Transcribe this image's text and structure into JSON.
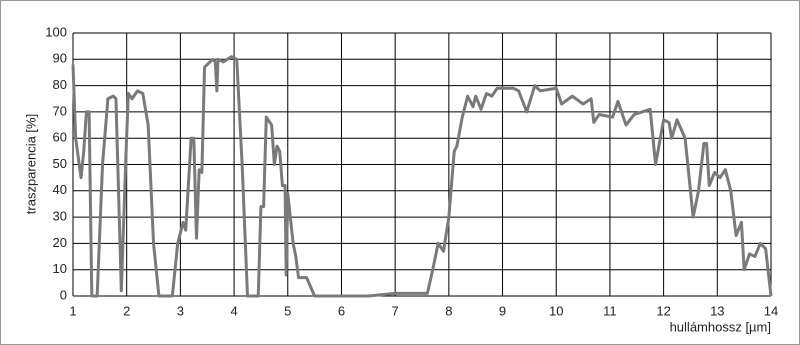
{
  "chart_data": {
    "type": "line",
    "y_label": "traszparencia [%]",
    "x_label": "hullámhossz [µm]",
    "color": "#7a7a7a",
    "grid": true,
    "xlim": [
      1,
      14
    ],
    "xticks": [
      1,
      2,
      3,
      4,
      5,
      6,
      7,
      8,
      9,
      10,
      11,
      12,
      13,
      14
    ],
    "ylim": [
      0,
      100
    ],
    "yticks": [
      0,
      10,
      20,
      30,
      40,
      50,
      60,
      70,
      80,
      90,
      100
    ],
    "x": [
      1.0,
      1.05,
      1.15,
      1.2,
      1.25,
      1.3,
      1.35,
      1.45,
      1.55,
      1.65,
      1.75,
      1.8,
      1.9,
      1.98,
      2.03,
      2.1,
      2.2,
      2.3,
      2.4,
      2.5,
      2.6,
      2.85,
      2.95,
      3.05,
      3.1,
      3.2,
      3.25,
      3.3,
      3.35,
      3.4,
      3.45,
      3.5,
      3.6,
      3.65,
      3.68,
      3.7,
      3.8,
      3.95,
      4.05,
      4.15,
      4.25,
      4.45,
      4.5,
      4.55,
      4.6,
      4.7,
      4.75,
      4.8,
      4.85,
      4.9,
      4.95,
      4.97,
      5.0,
      5.1,
      5.15,
      5.2,
      5.35,
      5.5,
      6.5,
      7.0,
      7.6,
      7.7,
      7.8,
      7.9,
      8.0,
      8.1,
      8.15,
      8.25,
      8.35,
      8.45,
      8.5,
      8.6,
      8.7,
      8.8,
      8.9,
      9.2,
      9.3,
      9.45,
      9.6,
      9.7,
      10.0,
      10.1,
      10.3,
      10.5,
      10.65,
      10.7,
      10.8,
      11.05,
      11.15,
      11.3,
      11.45,
      11.6,
      11.75,
      11.85,
      12.0,
      12.1,
      12.15,
      12.25,
      12.4,
      12.55,
      12.65,
      12.75,
      12.8,
      12.85,
      12.95,
      13.05,
      13.15,
      13.25,
      13.35,
      13.45,
      13.5,
      13.6,
      13.7,
      13.8,
      13.9,
      14.0
    ],
    "values": [
      88,
      60,
      45,
      55,
      70,
      70,
      0,
      0,
      50,
      75,
      76,
      75,
      2,
      50,
      77,
      75,
      78,
      77,
      65,
      20,
      0,
      0,
      20,
      28,
      25,
      60,
      60,
      22,
      48,
      47,
      87,
      88,
      90,
      89,
      78,
      90,
      89,
      91,
      90,
      50,
      0,
      0,
      34,
      34,
      68,
      65,
      50,
      57,
      55,
      42,
      42,
      8,
      39,
      20,
      15,
      7,
      7,
      0,
      0,
      1,
      1,
      10,
      20,
      17,
      30,
      55,
      57,
      68,
      76,
      72,
      76,
      71,
      77,
      76,
      79,
      79,
      78,
      70,
      80,
      78,
      79,
      73,
      76,
      73,
      75,
      66,
      69,
      68,
      74,
      65,
      69,
      70,
      71,
      50,
      67,
      66,
      60,
      67,
      60,
      30,
      40,
      58,
      58,
      42,
      47,
      45,
      48,
      40,
      23,
      28,
      10,
      16,
      15,
      20,
      18,
      0
    ]
  }
}
